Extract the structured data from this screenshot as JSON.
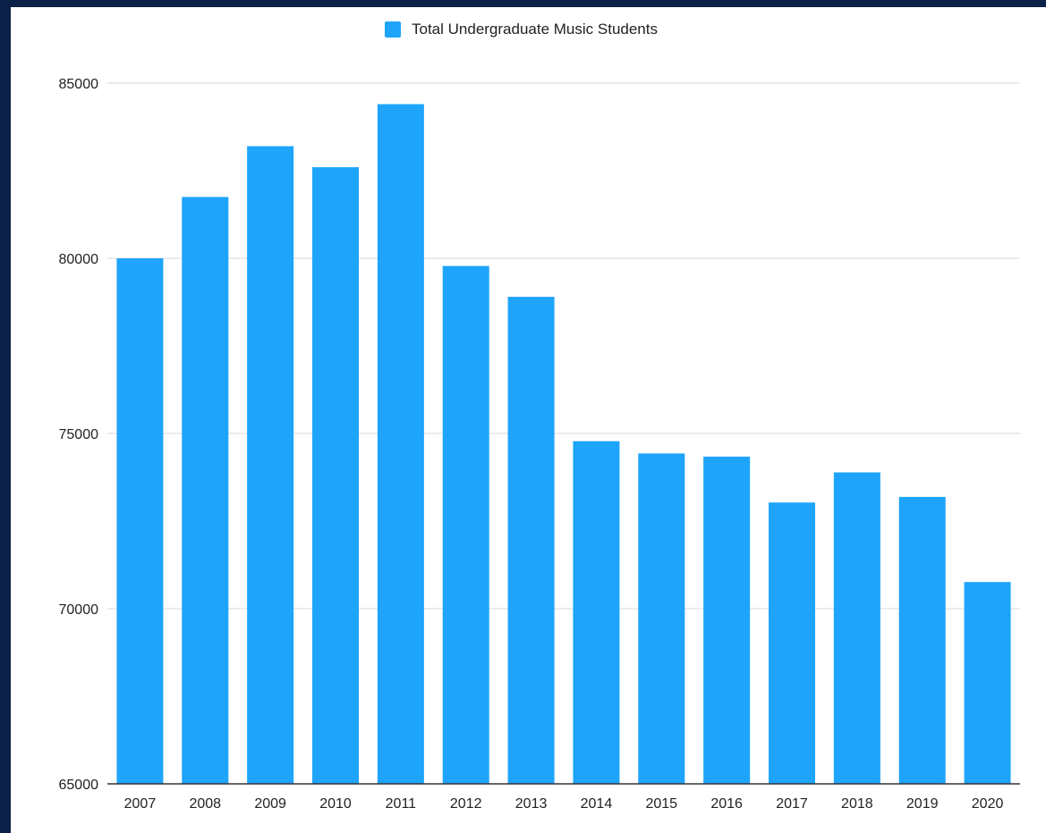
{
  "chart_data": {
    "type": "bar",
    "legend": {
      "label": "Total Undergraduate Music Students",
      "position": "top-center"
    },
    "categories": [
      "2007",
      "2008",
      "2009",
      "2010",
      "2011",
      "2012",
      "2013",
      "2014",
      "2015",
      "2016",
      "2017",
      "2018",
      "2019",
      "2020"
    ],
    "series": [
      {
        "name": "Total Undergraduate Music Students",
        "color": "#1ea4fa",
        "values": [
          80000,
          81750,
          83200,
          82600,
          84400,
          79780,
          78900,
          74780,
          74430,
          74340,
          73030,
          73890,
          73190,
          70760
        ]
      }
    ],
    "ylim": [
      65000,
      85000
    ],
    "yticks": [
      65000,
      70000,
      75000,
      80000,
      85000
    ],
    "grid": true,
    "gridColor": "#d9d9d9",
    "title": "",
    "xlabel": "",
    "ylabel": ""
  }
}
